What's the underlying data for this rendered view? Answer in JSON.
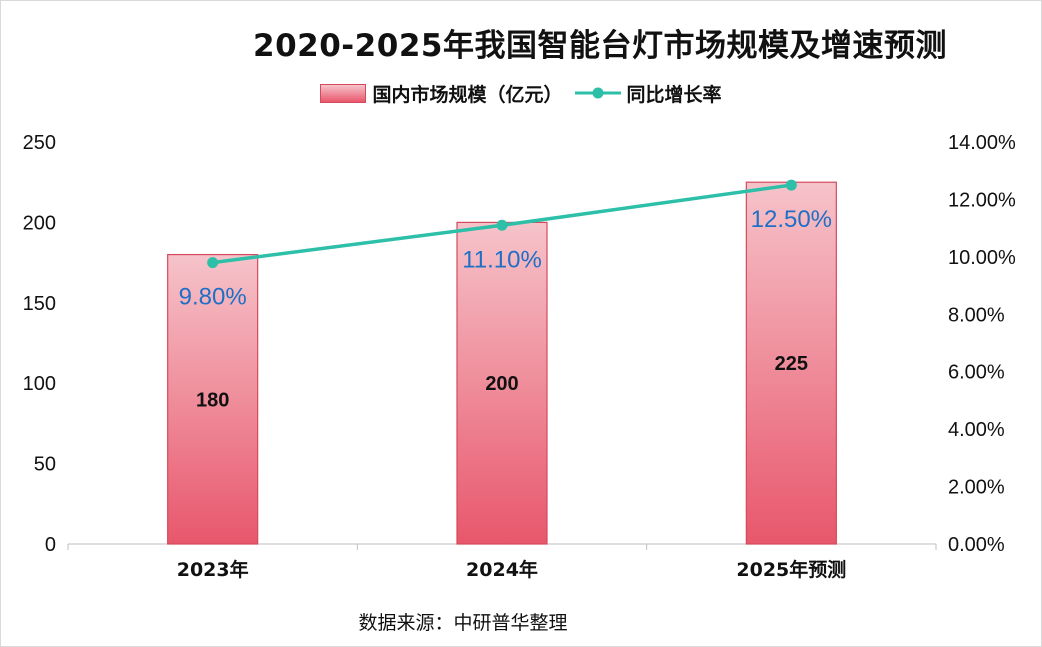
{
  "chart_data": {
    "type": "bar",
    "title": "2020-2025年我国智能台灯市场规模及增速预测",
    "categories": [
      "2023年",
      "2024年",
      "2025年预测"
    ],
    "series": [
      {
        "name": "国内市场规模（亿元）",
        "type": "bar",
        "axis": "left",
        "values": [
          180,
          200,
          225
        ],
        "labels": [
          "180",
          "200",
          "225"
        ]
      },
      {
        "name": "同比增长率",
        "type": "line",
        "axis": "right",
        "values": [
          9.8,
          11.1,
          12.5
        ],
        "labels": [
          "9.80%",
          "11.10%",
          "12.50%"
        ]
      }
    ],
    "y_left": {
      "lim": [
        0,
        250
      ],
      "ticks": [
        "0",
        "50",
        "100",
        "150",
        "200",
        "250"
      ]
    },
    "y_right": {
      "lim": [
        0,
        14
      ],
      "ticks": [
        "0.00%",
        "2.00%",
        "4.00%",
        "6.00%",
        "8.00%",
        "10.00%",
        "12.00%",
        "14.00%"
      ]
    },
    "legend_position": "top-center",
    "grid": false
  },
  "colors": {
    "bar_top": "#f6c3ca",
    "bar_bottom": "#e8576c",
    "bar_border": "#d44a5c",
    "line": "#2dbfa8",
    "pct_label": "#1f6fc6"
  },
  "source": "数据来源：中研普华整理"
}
